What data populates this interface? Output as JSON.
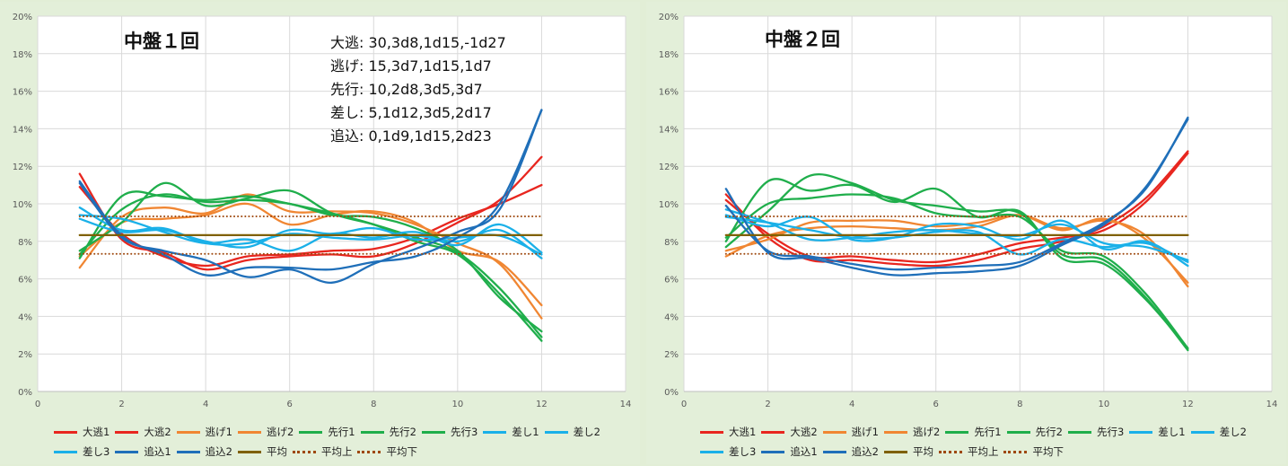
{
  "chart_data": [
    {
      "type": "line",
      "title": "中盤１回",
      "annotation": [
        "大逃: 30,3d8,1d15,-1d27",
        "逃げ: 15,3d7,1d15,1d7",
        "先行: 10,2d8,3d5,3d7",
        "差し: 5,1d12,3d5,2d17",
        "追込: 0,1d9,1d15,2d23"
      ],
      "xlim": [
        0,
        14
      ],
      "ylim": [
        0,
        20
      ],
      "xticks": [
        "0",
        "2",
        "4",
        "6",
        "8",
        "10",
        "12",
        "14"
      ],
      "yticks": [
        "0%",
        "2%",
        "4%",
        "6%",
        "8%",
        "10%",
        "12%",
        "14%",
        "16%",
        "18%",
        "20%"
      ],
      "grid": true,
      "legend_position": "bottom",
      "x": [
        1,
        2,
        3,
        4,
        5,
        6,
        7,
        8,
        9,
        10,
        11,
        12
      ],
      "series": [
        {
          "name": "大逃1",
          "color": "#e8261f",
          "style": "solid",
          "values": [
            11.6,
            8.1,
            7.4,
            6.5,
            7.0,
            7.2,
            7.3,
            7.2,
            7.9,
            9.0,
            10.2,
            12.5
          ]
        },
        {
          "name": "大逃2",
          "color": "#e8261f",
          "style": "solid",
          "values": [
            10.9,
            8.4,
            7.2,
            6.7,
            7.2,
            7.3,
            7.5,
            7.6,
            8.2,
            9.2,
            10.0,
            11.0
          ]
        },
        {
          "name": "逃げ1",
          "color": "#f08632",
          "style": "solid",
          "values": [
            6.6,
            9.3,
            9.8,
            9.5,
            10.5,
            9.6,
            9.6,
            9.5,
            8.9,
            7.9,
            6.8,
            3.9
          ]
        },
        {
          "name": "逃げ2",
          "color": "#f08632",
          "style": "solid",
          "values": [
            7.2,
            9.0,
            9.2,
            9.4,
            10.0,
            8.9,
            9.4,
            9.6,
            9.0,
            7.5,
            6.9,
            4.6
          ]
        },
        {
          "name": "先行1",
          "color": "#1fae4b",
          "style": "solid",
          "values": [
            7.1,
            10.4,
            10.4,
            10.2,
            10.4,
            10.0,
            9.5,
            8.9,
            8.0,
            7.3,
            5.2,
            2.7
          ]
        },
        {
          "name": "先行2",
          "color": "#1fae4b",
          "style": "solid",
          "values": [
            7.5,
            9.0,
            11.1,
            9.9,
            10.3,
            10.7,
            9.5,
            8.9,
            8.2,
            7.4,
            5.5,
            2.9
          ]
        },
        {
          "name": "先行3",
          "color": "#1fae4b",
          "style": "solid",
          "values": [
            7.3,
            9.7,
            10.5,
            10.1,
            10.2,
            10.0,
            9.4,
            9.3,
            8.7,
            7.5,
            5.0,
            3.2
          ]
        },
        {
          "name": "差し1",
          "color": "#1ab0e8",
          "style": "solid",
          "values": [
            9.8,
            8.6,
            8.7,
            7.9,
            7.9,
            8.4,
            8.2,
            8.1,
            8.3,
            8.0,
            8.6,
            7.1
          ]
        },
        {
          "name": "差し2",
          "color": "#1ab0e8",
          "style": "solid",
          "values": [
            9.4,
            9.2,
            8.5,
            7.9,
            8.1,
            7.5,
            8.4,
            8.2,
            8.5,
            7.8,
            8.9,
            7.4
          ]
        },
        {
          "name": "差し3",
          "color": "#1ab0e8",
          "style": "solid",
          "values": [
            9.2,
            8.5,
            8.6,
            8.0,
            7.7,
            8.6,
            8.4,
            8.7,
            8.1,
            8.2,
            8.3,
            7.3
          ]
        },
        {
          "name": "追込1",
          "color": "#1f6fb9",
          "style": "solid",
          "values": [
            11.2,
            8.3,
            7.3,
            6.2,
            6.6,
            6.6,
            6.5,
            6.9,
            7.2,
            8.2,
            10.0,
            15.0
          ]
        },
        {
          "name": "追込2",
          "color": "#1f6fb9",
          "style": "solid",
          "values": [
            11.1,
            8.2,
            7.5,
            7.0,
            6.1,
            6.5,
            5.8,
            6.8,
            7.6,
            8.5,
            9.7,
            15.0
          ]
        },
        {
          "name": "平均",
          "color": "#7f6000",
          "style": "solid",
          "values": [
            8.33,
            8.33,
            8.33,
            8.33,
            8.33,
            8.33,
            8.33,
            8.33,
            8.33,
            8.33,
            8.33,
            8.33
          ]
        },
        {
          "name": "平均上",
          "color": "#9e480e",
          "style": "dotted",
          "values": [
            9.33,
            9.33,
            9.33,
            9.33,
            9.33,
            9.33,
            9.33,
            9.33,
            9.33,
            9.33,
            9.33,
            9.33
          ]
        },
        {
          "name": "平均下",
          "color": "#9e480e",
          "style": "dotted",
          "values": [
            7.33,
            7.33,
            7.33,
            7.33,
            7.33,
            7.33,
            7.33,
            7.33,
            7.33,
            7.33,
            7.33,
            7.33
          ]
        }
      ]
    },
    {
      "type": "line",
      "title": "中盤２回",
      "xlim": [
        0,
        14
      ],
      "ylim": [
        0,
        20
      ],
      "xticks": [
        "0",
        "2",
        "4",
        "6",
        "8",
        "10",
        "12",
        "14"
      ],
      "yticks": [
        "0%",
        "2%",
        "4%",
        "6%",
        "8%",
        "10%",
        "12%",
        "14%",
        "16%",
        "18%",
        "20%"
      ],
      "grid": true,
      "legend_position": "bottom",
      "x": [
        1,
        2,
        3,
        4,
        5,
        6,
        7,
        8,
        9,
        10,
        11,
        12
      ],
      "series": [
        {
          "name": "大逃1",
          "color": "#e8261f",
          "style": "solid",
          "values": [
            10.5,
            8.2,
            7.0,
            7.0,
            6.8,
            6.7,
            7.0,
            7.6,
            8.0,
            8.8,
            10.3,
            12.8
          ]
        },
        {
          "name": "大逃2",
          "color": "#e8261f",
          "style": "solid",
          "values": [
            10.2,
            8.4,
            7.2,
            7.2,
            7.0,
            6.9,
            7.3,
            7.9,
            8.2,
            8.6,
            10.1,
            12.7
          ]
        },
        {
          "name": "逃げ1",
          "color": "#f08632",
          "style": "solid",
          "values": [
            7.2,
            8.3,
            8.7,
            8.8,
            8.7,
            8.6,
            8.8,
            9.4,
            8.7,
            9.1,
            8.3,
            5.6
          ]
        },
        {
          "name": "逃げ2",
          "color": "#f08632",
          "style": "solid",
          "values": [
            7.5,
            8.1,
            9.0,
            9.1,
            9.1,
            8.8,
            9.0,
            9.4,
            8.6,
            9.2,
            8.1,
            5.8
          ]
        },
        {
          "name": "先行1",
          "color": "#1fae4b",
          "style": "solid",
          "values": [
            8.0,
            11.2,
            10.7,
            11.0,
            10.1,
            10.8,
            9.3,
            9.6,
            7.1,
            6.8,
            4.9,
            2.3
          ]
        },
        {
          "name": "先行2",
          "color": "#1fae4b",
          "style": "solid",
          "values": [
            7.7,
            9.6,
            11.5,
            11.1,
            10.2,
            9.9,
            9.6,
            9.5,
            7.3,
            7.0,
            5.0,
            2.2
          ]
        },
        {
          "name": "先行3",
          "color": "#1fae4b",
          "style": "solid",
          "values": [
            8.2,
            10.0,
            10.3,
            10.5,
            10.3,
            9.5,
            9.3,
            9.3,
            7.5,
            7.2,
            5.2,
            2.3
          ]
        },
        {
          "name": "差し1",
          "color": "#1ab0e8",
          "style": "solid",
          "values": [
            9.7,
            9.0,
            8.1,
            8.2,
            8.5,
            8.6,
            8.4,
            8.3,
            8.9,
            7.9,
            7.7,
            7.0
          ]
        },
        {
          "name": "差し2",
          "color": "#1ab0e8",
          "style": "solid",
          "values": [
            9.4,
            8.8,
            9.3,
            8.1,
            8.2,
            8.9,
            8.8,
            8.1,
            9.1,
            7.6,
            8.0,
            6.7
          ]
        },
        {
          "name": "差し3",
          "color": "#1ab0e8",
          "style": "solid",
          "values": [
            9.3,
            9.0,
            8.6,
            8.2,
            8.2,
            8.5,
            8.5,
            7.3,
            8.1,
            7.7,
            7.9,
            6.9
          ]
        },
        {
          "name": "追込1",
          "color": "#1f6fb9",
          "style": "solid",
          "values": [
            10.8,
            7.4,
            7.1,
            6.6,
            6.2,
            6.3,
            6.4,
            6.7,
            7.8,
            8.9,
            10.9,
            14.5
          ]
        },
        {
          "name": "追込2",
          "color": "#1f6fb9",
          "style": "solid",
          "values": [
            9.9,
            7.5,
            7.2,
            6.8,
            6.5,
            6.6,
            6.7,
            6.9,
            7.9,
            9.0,
            10.8,
            14.6
          ]
        },
        {
          "name": "平均",
          "color": "#7f6000",
          "style": "solid",
          "values": [
            8.33,
            8.33,
            8.33,
            8.33,
            8.33,
            8.33,
            8.33,
            8.33,
            8.33,
            8.33,
            8.33,
            8.33
          ]
        },
        {
          "name": "平均上",
          "color": "#9e480e",
          "style": "dotted",
          "values": [
            9.33,
            9.33,
            9.33,
            9.33,
            9.33,
            9.33,
            9.33,
            9.33,
            9.33,
            9.33,
            9.33,
            9.33
          ]
        },
        {
          "name": "平均下",
          "color": "#9e480e",
          "style": "dotted",
          "values": [
            7.33,
            7.33,
            7.33,
            7.33,
            7.33,
            7.33,
            7.33,
            7.33,
            7.33,
            7.33,
            7.33,
            7.33
          ]
        }
      ]
    }
  ]
}
